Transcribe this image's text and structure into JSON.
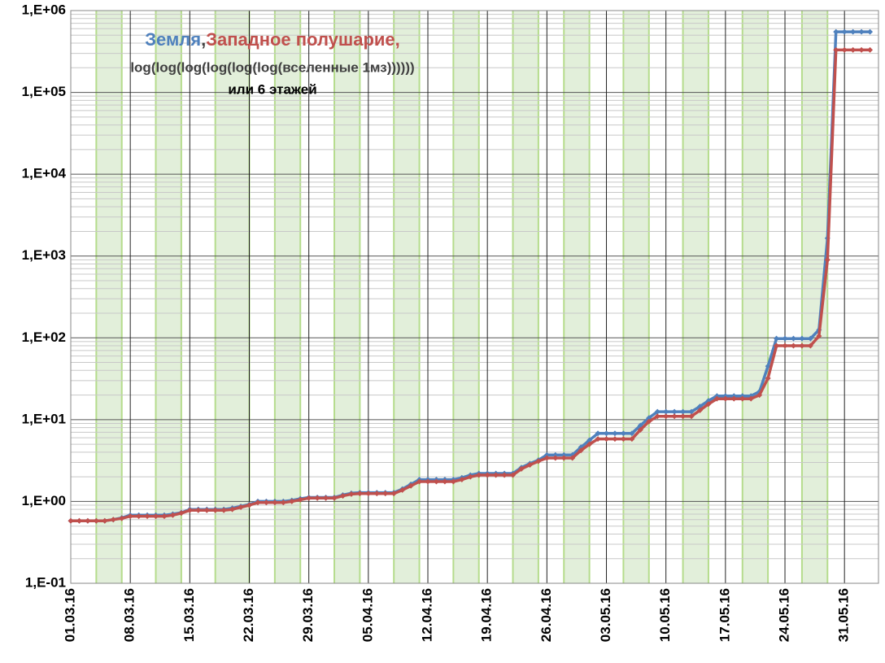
{
  "chart_data": {
    "type": "line",
    "log_scale": true,
    "grid": true,
    "subtitle": "log(log(log(log(log(log(вселенные 1мз))))))",
    "annotation": "или 6 этажей",
    "legend_separator": ",",
    "x": [
      "01.03.16",
      "02.03.16",
      "03.03.16",
      "04.03.16",
      "05.03.16",
      "06.03.16",
      "07.03.16",
      "08.03.16",
      "09.03.16",
      "10.03.16",
      "11.03.16",
      "12.03.16",
      "13.03.16",
      "14.03.16",
      "15.03.16",
      "16.03.16",
      "17.03.16",
      "18.03.16",
      "19.03.16",
      "20.03.16",
      "21.03.16",
      "22.03.16",
      "23.03.16",
      "24.03.16",
      "25.03.16",
      "26.03.16",
      "27.03.16",
      "28.03.16",
      "29.03.16",
      "30.03.16",
      "31.03.16",
      "01.04.16",
      "02.04.16",
      "03.04.16",
      "04.04.16",
      "05.04.16",
      "06.04.16",
      "07.04.16",
      "08.04.16",
      "09.04.16",
      "10.04.16",
      "11.04.16",
      "12.04.16",
      "13.04.16",
      "14.04.16",
      "15.04.16",
      "16.04.16",
      "17.04.16",
      "18.04.16",
      "19.04.16",
      "20.04.16",
      "21.04.16",
      "22.04.16",
      "23.04.16",
      "24.04.16",
      "25.04.16",
      "26.04.16",
      "27.04.16",
      "28.04.16",
      "29.04.16",
      "30.04.16",
      "01.05.16",
      "02.05.16",
      "03.05.16",
      "04.05.16",
      "05.05.16",
      "06.05.16",
      "07.05.16",
      "08.05.16",
      "09.05.16",
      "10.05.16",
      "11.05.16",
      "12.05.16",
      "13.05.16",
      "14.05.16",
      "15.05.16",
      "16.05.16",
      "17.05.16",
      "18.05.16",
      "19.05.16",
      "20.05.16",
      "21.05.16",
      "22.05.16",
      "23.05.16",
      "24.05.16",
      "25.05.16",
      "26.05.16",
      "27.05.16",
      "28.05.16",
      "29.05.16",
      "30.05.16",
      "31.05.16",
      "01.06.16",
      "02.06.16",
      "03.06.16"
    ],
    "series": [
      {
        "name": "Земля",
        "color": "#4f81bd",
        "values": [
          0.58,
          0.58,
          0.58,
          0.58,
          0.58,
          0.6,
          0.63,
          0.68,
          0.68,
          0.68,
          0.68,
          0.68,
          0.7,
          0.73,
          0.8,
          0.8,
          0.8,
          0.8,
          0.8,
          0.83,
          0.87,
          0.92,
          1.0,
          1.0,
          1.0,
          1.0,
          1.03,
          1.08,
          1.12,
          1.12,
          1.12,
          1.12,
          1.2,
          1.26,
          1.28,
          1.28,
          1.28,
          1.28,
          1.28,
          1.42,
          1.62,
          1.85,
          1.85,
          1.85,
          1.85,
          1.85,
          1.95,
          2.1,
          2.2,
          2.2,
          2.2,
          2.2,
          2.2,
          2.6,
          2.9,
          3.2,
          3.7,
          3.7,
          3.7,
          3.7,
          4.6,
          5.6,
          6.8,
          6.8,
          6.8,
          6.8,
          6.8,
          8.5,
          10.5,
          12.5,
          12.5,
          12.5,
          12.5,
          12.5,
          14.5,
          17,
          19.5,
          19.5,
          19.5,
          19.5,
          19.5,
          22,
          45,
          98,
          98,
          98,
          98,
          98,
          125,
          1650,
          550000,
          550000,
          550000,
          550000,
          550000
        ]
      },
      {
        "name": "Западное полушарие",
        "color": "#c0504d",
        "values": [
          0.58,
          0.58,
          0.58,
          0.58,
          0.58,
          0.6,
          0.62,
          0.66,
          0.66,
          0.66,
          0.66,
          0.66,
          0.68,
          0.72,
          0.78,
          0.78,
          0.78,
          0.78,
          0.78,
          0.8,
          0.85,
          0.9,
          0.97,
          0.97,
          0.97,
          0.97,
          1.0,
          1.05,
          1.1,
          1.1,
          1.1,
          1.1,
          1.17,
          1.23,
          1.25,
          1.25,
          1.25,
          1.25,
          1.25,
          1.38,
          1.55,
          1.75,
          1.75,
          1.75,
          1.75,
          1.75,
          1.85,
          2.0,
          2.1,
          2.1,
          2.1,
          2.1,
          2.1,
          2.5,
          2.8,
          3.1,
          3.4,
          3.4,
          3.4,
          3.4,
          4.2,
          5.0,
          5.8,
          5.8,
          5.8,
          5.8,
          5.8,
          7.5,
          9.5,
          11,
          11,
          11,
          11,
          11,
          13,
          15.5,
          18,
          18,
          18,
          18,
          18,
          20,
          32,
          80,
          80,
          80,
          80,
          80,
          105,
          900,
          330000,
          330000,
          330000,
          330000,
          330000
        ]
      }
    ],
    "xlim": [
      "01.03.16",
      "04.06.16"
    ],
    "xticks": [
      "01.03.16",
      "08.03.16",
      "15.03.16",
      "22.03.16",
      "29.03.16",
      "05.04.16",
      "12.04.16",
      "19.04.16",
      "26.04.16",
      "03.05.16",
      "10.05.16",
      "17.05.16",
      "24.05.16",
      "31.05.16"
    ],
    "ylim": [
      0.1,
      1000000
    ],
    "yticks": [
      {
        "value": 0.1,
        "label": "1,E-01"
      },
      {
        "value": 1,
        "label": "1,E+00"
      },
      {
        "value": 10,
        "label": "1,E+01"
      },
      {
        "value": 100,
        "label": "1,E+02"
      },
      {
        "value": 1000,
        "label": "1,E+03"
      },
      {
        "value": 10000,
        "label": "1,E+04"
      },
      {
        "value": 100000,
        "label": "1,E+05"
      },
      {
        "value": 1000000,
        "label": "1,E+06"
      }
    ],
    "highlight_color": "#e2efda",
    "highlight_ranges": [
      [
        "04.03.16",
        "07.03.16"
      ],
      [
        "11.03.16",
        "14.03.16"
      ],
      [
        "18.03.16",
        "22.03.16"
      ],
      [
        "25.03.16",
        "28.03.16"
      ],
      [
        "01.04.16",
        "04.04.16"
      ],
      [
        "08.04.16",
        "11.04.16"
      ],
      [
        "15.04.16",
        "18.04.16"
      ],
      [
        "22.04.16",
        "25.04.16"
      ],
      [
        "28.04.16",
        "01.05.16"
      ],
      [
        "05.05.16",
        "08.05.16"
      ],
      [
        "12.05.16",
        "15.05.16"
      ],
      [
        "19.05.16",
        "22.05.16"
      ],
      [
        "26.05.16",
        "29.05.16"
      ]
    ]
  }
}
